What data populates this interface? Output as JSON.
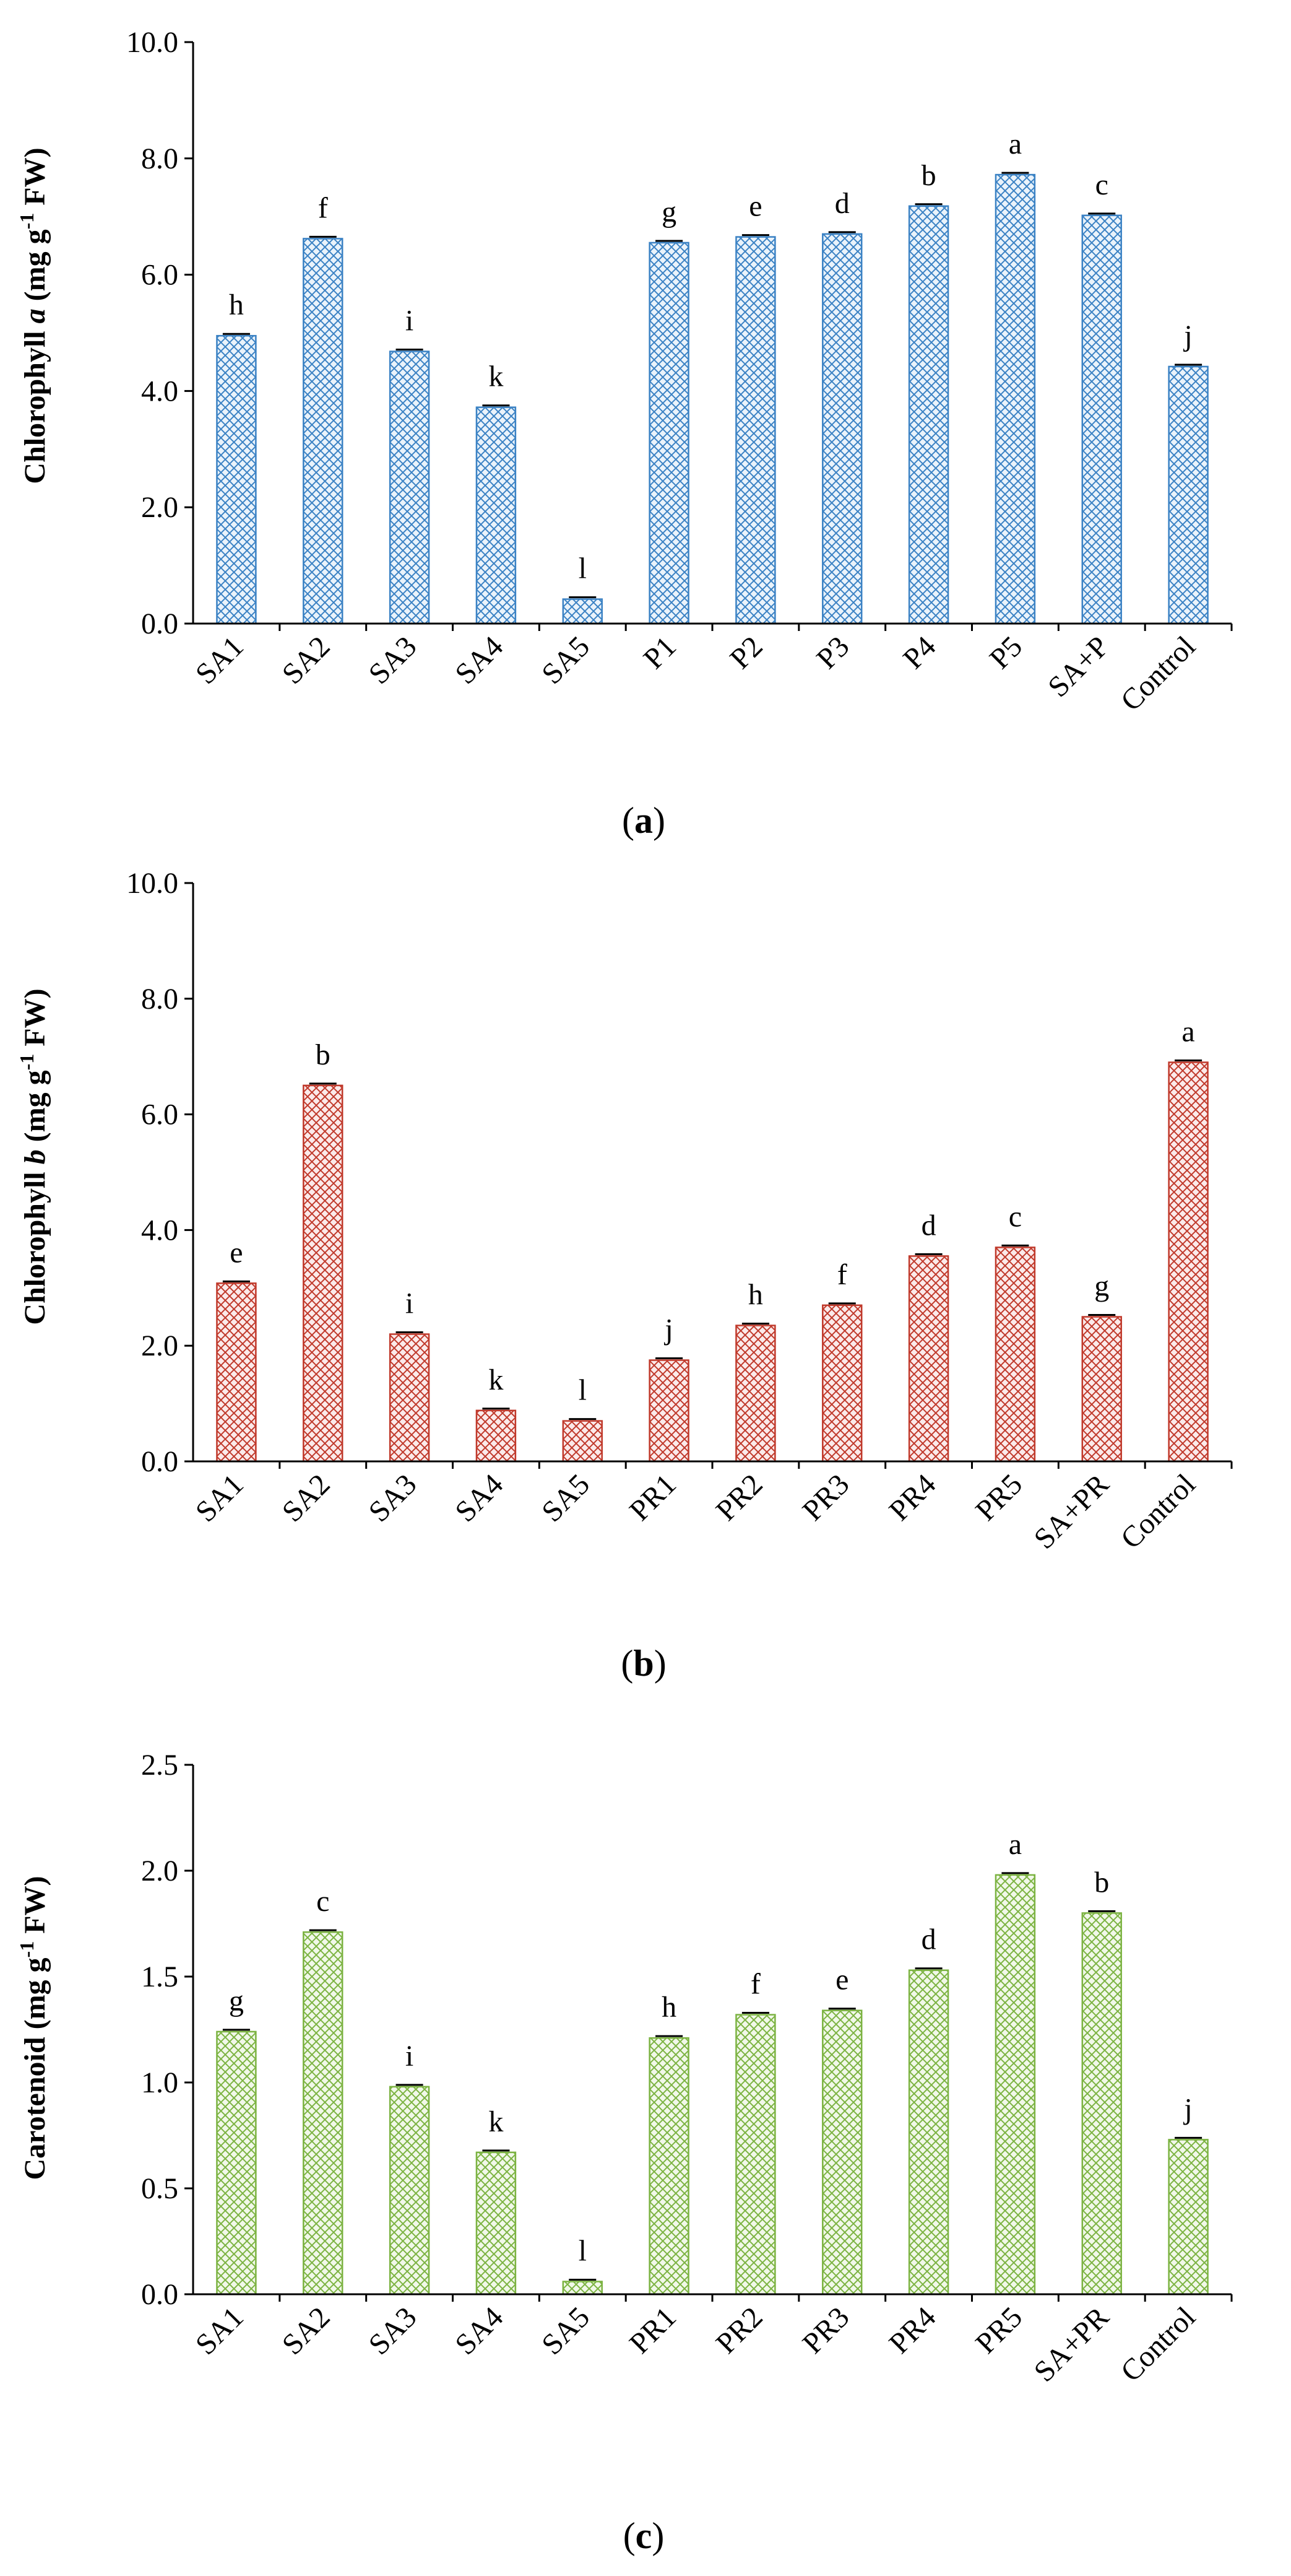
{
  "figure": {
    "colors": {
      "panel_a": "#3b82c4",
      "panel_b": "#c0392b",
      "panel_c": "#7cb342"
    }
  },
  "chart_data": [
    {
      "type": "bar",
      "panel_label": "a",
      "ylabel_parts": {
        "pre": "Chlorophyll ",
        "italic": "a",
        "unit": " (mg g",
        "sup": "-1",
        "post": " FW)"
      },
      "ylim": [
        0,
        10
      ],
      "yticks": [
        "0.0",
        "2.0",
        "4.0",
        "6.0",
        "8.0",
        "10.0"
      ],
      "categories": [
        "SA1",
        "SA2",
        "SA3",
        "SA4",
        "SA5",
        "P1",
        "P2",
        "P3",
        "P4",
        "P5",
        "SA+P",
        "Control"
      ],
      "values": [
        4.95,
        6.62,
        4.68,
        3.72,
        0.42,
        6.55,
        6.65,
        6.7,
        7.18,
        7.72,
        7.02,
        4.42
      ],
      "significance": [
        "h",
        "f",
        "i",
        "k",
        "l",
        "g",
        "e",
        "d",
        "b",
        "a",
        "c",
        "j"
      ]
    },
    {
      "type": "bar",
      "panel_label": "b",
      "ylabel_parts": {
        "pre": "Chlorophyll ",
        "italic": "b",
        "unit": " (mg g",
        "sup": "-1",
        "post": " FW)"
      },
      "ylim": [
        0,
        10
      ],
      "yticks": [
        "0.0",
        "2.0",
        "4.0",
        "6.0",
        "8.0",
        "10.0"
      ],
      "categories": [
        "SA1",
        "SA2",
        "SA3",
        "SA4",
        "SA5",
        "PR1",
        "PR2",
        "PR3",
        "PR4",
        "PR5",
        "SA+PR",
        "Control"
      ],
      "values": [
        3.08,
        6.5,
        2.2,
        0.88,
        0.7,
        1.75,
        2.35,
        2.7,
        3.55,
        3.7,
        2.5,
        6.9
      ],
      "significance": [
        "e",
        "b",
        "i",
        "k",
        "l",
        "j",
        "h",
        "f",
        "d",
        "c",
        "g",
        "a"
      ]
    },
    {
      "type": "bar",
      "panel_label": "c",
      "ylabel_parts": {
        "pre": "Carotenoid",
        "italic": "",
        "unit": " (mg g",
        "sup": "-1",
        "post": " FW)"
      },
      "ylim": [
        0,
        2.5
      ],
      "yticks": [
        "0.0",
        "0.5",
        "1.0",
        "1.5",
        "2.0",
        "2.5"
      ],
      "categories": [
        "SA1",
        "SA2",
        "SA3",
        "SA4",
        "SA5",
        "PR1",
        "PR2",
        "PR3",
        "PR4",
        "PR5",
        "SA+PR",
        "Control"
      ],
      "values": [
        1.24,
        1.71,
        0.98,
        0.67,
        0.06,
        1.21,
        1.32,
        1.34,
        1.53,
        1.98,
        1.8,
        0.73
      ],
      "significance": [
        "g",
        "c",
        "i",
        "k",
        "l",
        "h",
        "f",
        "e",
        "d",
        "a",
        "b",
        "j"
      ]
    }
  ]
}
